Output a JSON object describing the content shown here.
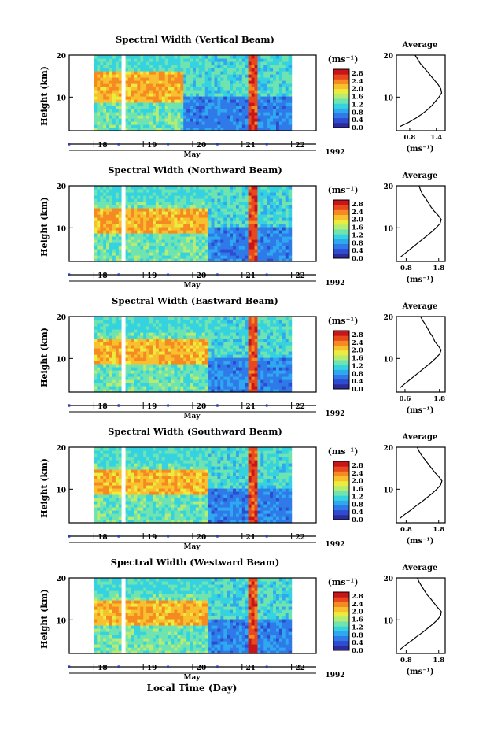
{
  "figure": {
    "xlabel": "Local Time (Day)",
    "month": "May",
    "year": "1992",
    "cbar_unit": "(ms⁻¹)",
    "avg_title": "Average",
    "avg_xlabel": "(ms⁻¹)",
    "colormap": [
      "#2d2a9a",
      "#2f4bd0",
      "#2f7ae8",
      "#2fa8f0",
      "#35d3e0",
      "#6fe3b0",
      "#b6ec72",
      "#ecec3e",
      "#f8c02e",
      "#f58a22",
      "#e8481d",
      "#c8151a"
    ]
  },
  "chart_data": [
    {
      "type": "heatmap",
      "title": "Spectral Width (Vertical Beam)",
      "ylabel": "Height (km)",
      "x_ticklabels": [
        "18",
        "19",
        "20",
        "21",
        "22"
      ],
      "xlim_days": [
        17.5,
        22.5
      ],
      "y_ticklabels": [
        "20",
        "10"
      ],
      "ylim_km": [
        2,
        20
      ],
      "colorbar": {
        "ticks": [
          "2.8",
          "2.4",
          "2.0",
          "1.6",
          "1.2",
          "0.8",
          "0.4",
          "0.0"
        ],
        "range": [
          0,
          3.0
        ]
      },
      "observed_span_days": [
        18.0,
        22.0
      ],
      "data_gap_day": 18.6,
      "pattern": {
        "high_until_day": 19.8,
        "high_layer_km": [
          9,
          16
        ],
        "low_below_km": 10,
        "rain_band_days": [
          21.1,
          21.3
        ]
      },
      "average_profile": {
        "xticklabels": [
          "0.8",
          "1.4"
        ],
        "xlim": [
          0.5,
          1.6
        ],
        "ylim_km": [
          2,
          20
        ],
        "yticklabels": [
          "20",
          "10"
        ],
        "height_km": [
          3,
          4,
          5,
          6,
          7,
          8,
          9,
          10,
          11,
          12,
          13,
          14,
          15,
          16,
          17,
          18,
          19,
          20
        ],
        "width": [
          0.58,
          0.78,
          0.94,
          1.08,
          1.2,
          1.3,
          1.38,
          1.46,
          1.52,
          1.5,
          1.44,
          1.36,
          1.28,
          1.2,
          1.12,
          1.04,
          0.98,
          0.92
        ]
      }
    },
    {
      "type": "heatmap",
      "title": "Spectral Width (Northward Beam)",
      "ylabel": "Height (km)",
      "x_ticklabels": [
        "18",
        "19",
        "20",
        "21",
        "22"
      ],
      "xlim_days": [
        17.5,
        22.5
      ],
      "y_ticklabels": [
        "20",
        "10"
      ],
      "ylim_km": [
        2,
        20
      ],
      "colorbar": {
        "ticks": [
          "2.8",
          "2.4",
          "2.0",
          "1.6",
          "1.2",
          "0.8",
          "0.4",
          "0.0"
        ],
        "range": [
          0,
          3.0
        ]
      },
      "observed_span_days": [
        18.0,
        22.0
      ],
      "data_gap_day": 18.6,
      "pattern": {
        "high_until_day": 20.3,
        "high_layer_km": [
          9,
          15
        ],
        "low_below_km": 10,
        "rain_band_days": [
          21.1,
          21.3
        ]
      },
      "average_profile": {
        "xticklabels": [
          "0.8",
          "1.8"
        ],
        "xlim": [
          0.5,
          2.0
        ],
        "ylim_km": [
          2,
          20
        ],
        "yticklabels": [
          "20",
          "10"
        ],
        "height_km": [
          3,
          4,
          5,
          6,
          7,
          8,
          9,
          10,
          11,
          12,
          13,
          14,
          15,
          16,
          17,
          18,
          19,
          20
        ],
        "width": [
          0.62,
          0.78,
          0.94,
          1.1,
          1.26,
          1.42,
          1.58,
          1.72,
          1.84,
          1.88,
          1.78,
          1.66,
          1.56,
          1.48,
          1.4,
          1.3,
          1.24,
          1.2
        ]
      }
    },
    {
      "type": "heatmap",
      "title": "Spectral Width (Eastward Beam)",
      "ylabel": "Height (km)",
      "x_ticklabels": [
        "18",
        "19",
        "20",
        "21",
        "22"
      ],
      "xlim_days": [
        17.5,
        22.5
      ],
      "y_ticklabels": [
        "20",
        "10"
      ],
      "ylim_km": [
        2,
        20
      ],
      "colorbar": {
        "ticks": [
          "2.8",
          "2.4",
          "2.0",
          "1.6",
          "1.2",
          "0.8",
          "0.4",
          "0.0"
        ],
        "range": [
          0,
          3.0
        ]
      },
      "observed_span_days": [
        18.0,
        22.0
      ],
      "data_gap_day": 18.6,
      "pattern": {
        "high_until_day": 20.3,
        "high_layer_km": [
          9,
          15
        ],
        "low_below_km": 10,
        "rain_band_days": [
          21.1,
          21.3
        ]
      },
      "average_profile": {
        "xticklabels": [
          "0.6",
          "1.8"
        ],
        "xlim": [
          0.3,
          2.0
        ],
        "ylim_km": [
          2,
          20
        ],
        "yticklabels": [
          "20",
          "10"
        ],
        "height_km": [
          3,
          4,
          5,
          6,
          7,
          8,
          9,
          10,
          11,
          12,
          13,
          14,
          15,
          16,
          17,
          18,
          19,
          20
        ],
        "width": [
          0.42,
          0.6,
          0.78,
          0.96,
          1.14,
          1.32,
          1.5,
          1.66,
          1.8,
          1.86,
          1.76,
          1.64,
          1.58,
          1.48,
          1.4,
          1.32,
          1.22,
          1.14
        ]
      }
    },
    {
      "type": "heatmap",
      "title": "Spectral Width (Southward Beam)",
      "ylabel": "Height (km)",
      "x_ticklabels": [
        "18",
        "19",
        "20",
        "21",
        "22"
      ],
      "xlim_days": [
        17.5,
        22.5
      ],
      "y_ticklabels": [
        "20",
        "10"
      ],
      "ylim_km": [
        2,
        20
      ],
      "colorbar": {
        "ticks": [
          "2.8",
          "2.4",
          "2.0",
          "1.6",
          "1.2",
          "0.8",
          "0.4",
          "0.0"
        ],
        "range": [
          0,
          3.0
        ]
      },
      "observed_span_days": [
        18.0,
        22.0
      ],
      "data_gap_day": 18.6,
      "pattern": {
        "high_until_day": 20.3,
        "high_layer_km": [
          9,
          15
        ],
        "low_below_km": 10,
        "rain_band_days": [
          21.1,
          21.3
        ]
      },
      "average_profile": {
        "xticklabels": [
          "0.8",
          "1.8"
        ],
        "xlim": [
          0.5,
          2.0
        ],
        "ylim_km": [
          2,
          20
        ],
        "yticklabels": [
          "20",
          "10"
        ],
        "height_km": [
          3,
          4,
          5,
          6,
          7,
          8,
          9,
          10,
          11,
          12,
          13,
          14,
          15,
          16,
          17,
          18,
          19,
          20
        ],
        "width": [
          0.6,
          0.76,
          0.94,
          1.1,
          1.28,
          1.44,
          1.6,
          1.74,
          1.86,
          1.9,
          1.8,
          1.68,
          1.58,
          1.48,
          1.38,
          1.28,
          1.2,
          1.14
        ]
      }
    },
    {
      "type": "heatmap",
      "title": "Spectral Width (Westward Beam)",
      "ylabel": "Height (km)",
      "x_ticklabels": [
        "18",
        "19",
        "20",
        "21",
        "22"
      ],
      "xlim_days": [
        17.5,
        22.5
      ],
      "y_ticklabels": [
        "20",
        "10"
      ],
      "ylim_km": [
        2,
        20
      ],
      "colorbar": {
        "ticks": [
          "2.8",
          "2.4",
          "2.0",
          "1.6",
          "1.2",
          "0.8",
          "0.4",
          "0.0"
        ],
        "range": [
          0,
          3.0
        ]
      },
      "observed_span_days": [
        18.0,
        22.0
      ],
      "data_gap_day": 18.6,
      "pattern": {
        "high_until_day": 20.3,
        "high_layer_km": [
          9,
          15
        ],
        "low_below_km": 10,
        "rain_band_days": [
          21.1,
          21.3
        ]
      },
      "average_profile": {
        "xticklabels": [
          "0.8",
          "1.8"
        ],
        "xlim": [
          0.5,
          2.0
        ],
        "ylim_km": [
          2,
          20
        ],
        "yticklabels": [
          "20",
          "10"
        ],
        "height_km": [
          3,
          4,
          5,
          6,
          7,
          8,
          9,
          10,
          11,
          12,
          13,
          14,
          15,
          16,
          17,
          18,
          19,
          20
        ],
        "width": [
          0.62,
          0.78,
          0.96,
          1.12,
          1.3,
          1.46,
          1.62,
          1.76,
          1.86,
          1.88,
          1.76,
          1.66,
          1.56,
          1.44,
          1.36,
          1.28,
          1.2,
          1.14
        ]
      }
    }
  ]
}
